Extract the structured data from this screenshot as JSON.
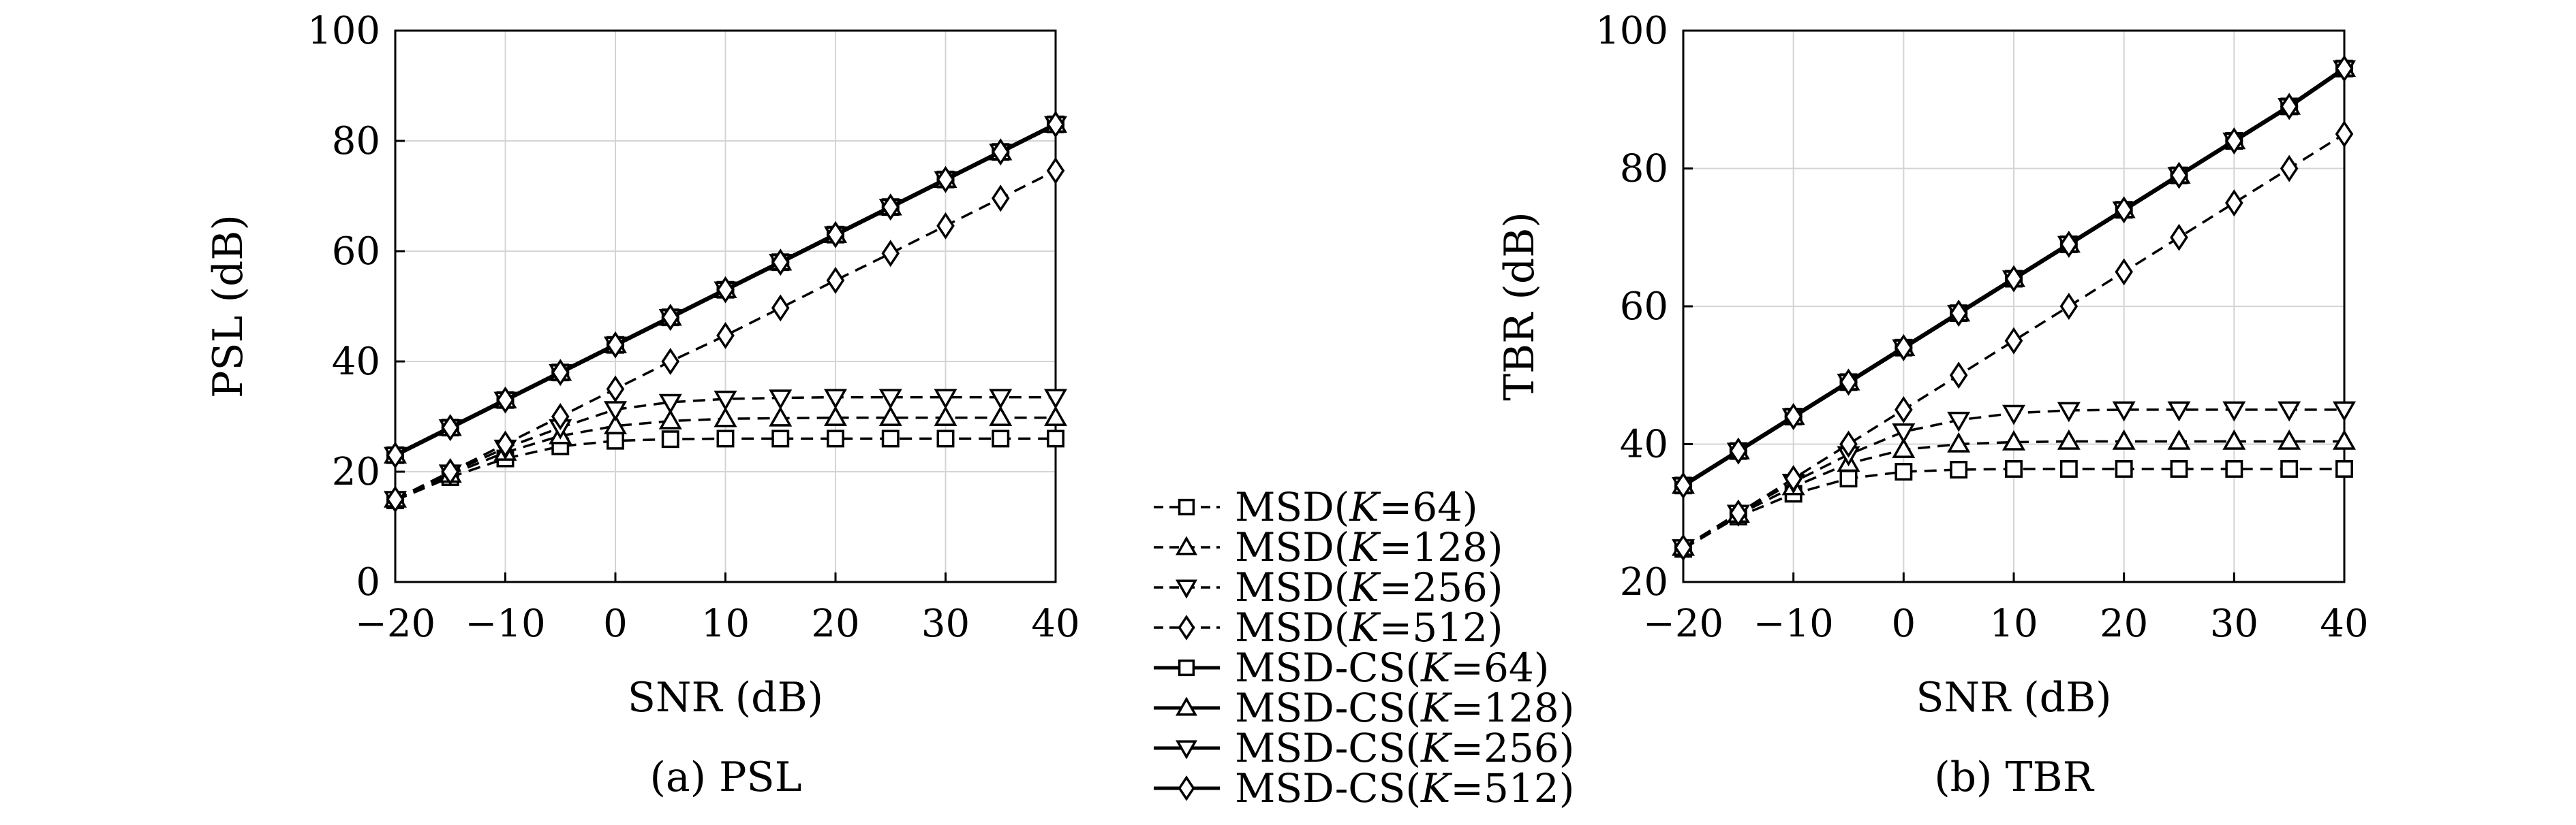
{
  "chart_data": [
    {
      "type": "line",
      "caption": "(a) PSL",
      "xlabel": "SNR (dB)",
      "ylabel": "PSL (dB)",
      "xlim": [
        -20,
        40
      ],
      "ylim": [
        0,
        100
      ],
      "xticks": [
        -20,
        -10,
        0,
        10,
        20,
        30,
        40
      ],
      "xtick_labels": [
        "−20",
        "−10",
        "0",
        "10",
        "20",
        "30",
        "40"
      ],
      "yticks": [
        0,
        20,
        40,
        60,
        80,
        100
      ],
      "grid": true,
      "x": [
        -20,
        -15,
        -10,
        -5,
        0,
        5,
        10,
        15,
        20,
        25,
        30,
        35,
        40
      ],
      "series": [
        {
          "name": "MSD(K=64)",
          "style": "dashed",
          "marker": "square",
          "values": [
            14.8,
            19.0,
            22.4,
            24.6,
            25.6,
            25.9,
            26.0,
            26.0,
            26.0,
            26.0,
            26.0,
            26.0,
            26.0
          ]
        },
        {
          "name": "MSD(K=128)",
          "style": "dashed",
          "marker": "triangle-up",
          "values": [
            15.0,
            19.5,
            23.5,
            26.5,
            28.3,
            29.2,
            29.6,
            29.7,
            29.8,
            29.8,
            29.8,
            29.8,
            29.8
          ]
        },
        {
          "name": "MSD(K=256)",
          "style": "dashed",
          "marker": "triangle-down",
          "values": [
            15.0,
            19.8,
            24.3,
            28.0,
            31.3,
            32.6,
            33.2,
            33.4,
            33.5,
            33.5,
            33.5,
            33.5,
            33.5
          ]
        },
        {
          "name": "MSD(K=512)",
          "style": "dashed",
          "marker": "diamond",
          "values": [
            15.0,
            20.0,
            25.0,
            30.0,
            35.0,
            40.0,
            44.7,
            49.7,
            54.7,
            59.6,
            64.6,
            69.6,
            74.6
          ]
        },
        {
          "name": "MSD-CS(K=64)",
          "style": "solid",
          "marker": "square",
          "values": [
            23.0,
            28.0,
            33.0,
            38.0,
            43.0,
            48.0,
            53.0,
            58.0,
            63.0,
            68.0,
            73.0,
            78.0,
            83.0
          ]
        },
        {
          "name": "MSD-CS(K=128)",
          "style": "solid",
          "marker": "triangle-up",
          "values": [
            23.0,
            28.0,
            33.0,
            38.0,
            43.0,
            48.0,
            53.0,
            58.0,
            63.0,
            68.0,
            73.0,
            78.0,
            83.0
          ]
        },
        {
          "name": "MSD-CS(K=256)",
          "style": "solid",
          "marker": "triangle-down",
          "values": [
            23.0,
            28.0,
            33.0,
            38.0,
            43.0,
            48.0,
            53.0,
            58.0,
            63.0,
            68.0,
            73.0,
            78.0,
            83.0
          ]
        },
        {
          "name": "MSD-CS(K=512)",
          "style": "solid",
          "marker": "diamond",
          "values": [
            23.0,
            28.0,
            33.0,
            38.0,
            43.0,
            48.0,
            53.0,
            58.0,
            63.0,
            68.0,
            73.0,
            78.0,
            83.0
          ]
        }
      ]
    },
    {
      "type": "line",
      "caption": "(b) TBR",
      "xlabel": "SNR (dB)",
      "ylabel": "TBR (dB)",
      "xlim": [
        -20,
        40
      ],
      "ylim": [
        20,
        100
      ],
      "xticks": [
        -20,
        -10,
        0,
        10,
        20,
        30,
        40
      ],
      "xtick_labels": [
        "−20",
        "−10",
        "0",
        "10",
        "20",
        "30",
        "40"
      ],
      "yticks": [
        20,
        40,
        60,
        80,
        100
      ],
      "grid": true,
      "x": [
        -20,
        -15,
        -10,
        -5,
        0,
        5,
        10,
        15,
        20,
        25,
        30,
        35,
        40
      ],
      "series": [
        {
          "name": "MSD(K=64)",
          "style": "dashed",
          "marker": "square",
          "values": [
            24.8,
            29.5,
            32.8,
            35.0,
            36.0,
            36.3,
            36.4,
            36.4,
            36.4,
            36.4,
            36.4,
            36.4,
            36.4
          ]
        },
        {
          "name": "MSD(K=128)",
          "style": "dashed",
          "marker": "triangle-up",
          "values": [
            25.0,
            29.8,
            33.8,
            37.2,
            39.2,
            40.0,
            40.3,
            40.4,
            40.4,
            40.4,
            40.4,
            40.4,
            40.4
          ]
        },
        {
          "name": "MSD(K=256)",
          "style": "dashed",
          "marker": "triangle-down",
          "values": [
            25.0,
            30.0,
            34.5,
            38.5,
            41.8,
            43.5,
            44.5,
            44.9,
            45.0,
            45.0,
            45.0,
            45.0,
            45.0
          ]
        },
        {
          "name": "MSD(K=512)",
          "style": "dashed",
          "marker": "diamond",
          "values": [
            25.0,
            30.0,
            35.0,
            40.0,
            45.0,
            50.0,
            55.0,
            60.0,
            65.0,
            70.0,
            75.0,
            80.0,
            85.0
          ]
        },
        {
          "name": "MSD-CS(K=64)",
          "style": "solid",
          "marker": "square",
          "values": [
            34.0,
            39.0,
            44.0,
            49.0,
            54.0,
            59.0,
            64.0,
            69.0,
            74.0,
            79.0,
            84.0,
            89.0,
            94.5
          ]
        },
        {
          "name": "MSD-CS(K=128)",
          "style": "solid",
          "marker": "triangle-up",
          "values": [
            34.0,
            39.0,
            44.0,
            49.0,
            54.0,
            59.0,
            64.0,
            69.0,
            74.0,
            79.0,
            84.0,
            89.0,
            94.5
          ]
        },
        {
          "name": "MSD-CS(K=256)",
          "style": "solid",
          "marker": "triangle-down",
          "values": [
            34.0,
            39.0,
            44.0,
            49.0,
            54.0,
            59.0,
            64.0,
            69.0,
            74.0,
            79.0,
            84.0,
            89.0,
            94.5
          ]
        },
        {
          "name": "MSD-CS(K=512)",
          "style": "solid",
          "marker": "diamond",
          "values": [
            34.0,
            39.0,
            44.0,
            49.0,
            54.0,
            59.0,
            64.0,
            69.0,
            74.0,
            79.0,
            84.0,
            89.0,
            94.5
          ]
        }
      ]
    }
  ],
  "legend": {
    "placement": "center-bottom between panels",
    "entries": [
      {
        "prefix": "MSD(",
        "k": "K",
        "suffix": "=64)",
        "style": "dashed",
        "marker": "square"
      },
      {
        "prefix": "MSD(",
        "k": "K",
        "suffix": "=128)",
        "style": "dashed",
        "marker": "triangle-up"
      },
      {
        "prefix": "MSD(",
        "k": "K",
        "suffix": "=256)",
        "style": "dashed",
        "marker": "triangle-down"
      },
      {
        "prefix": "MSD(",
        "k": "K",
        "suffix": "=512)",
        "style": "dashed",
        "marker": "diamond"
      },
      {
        "prefix": "MSD-CS(",
        "k": "K",
        "suffix": "=64)",
        "style": "solid",
        "marker": "square"
      },
      {
        "prefix": "MSD-CS(",
        "k": "K",
        "suffix": "=128)",
        "style": "solid",
        "marker": "triangle-up"
      },
      {
        "prefix": "MSD-CS(",
        "k": "K",
        "suffix": "=256)",
        "style": "solid",
        "marker": "triangle-down"
      },
      {
        "prefix": "MSD-CS(",
        "k": "K",
        "suffix": "=512)",
        "style": "solid",
        "marker": "diamond"
      }
    ]
  },
  "colors": {
    "line": "#000000",
    "grid": "#d4d4d4",
    "background": "#ffffff"
  }
}
